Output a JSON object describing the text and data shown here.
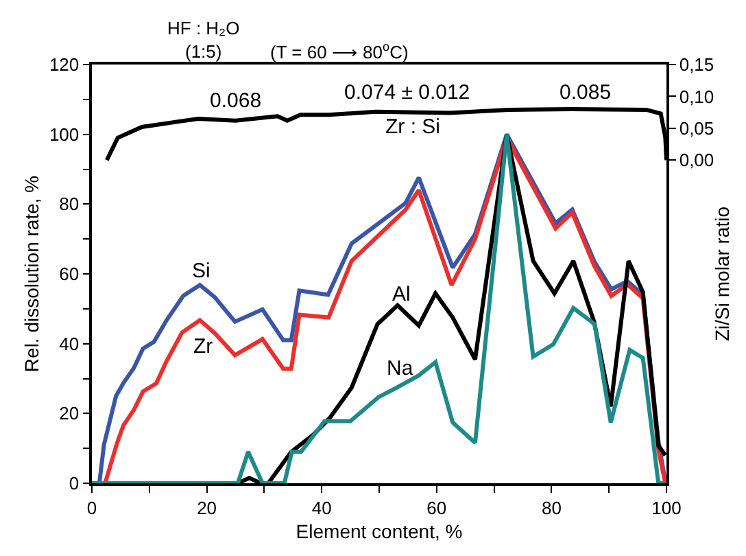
{
  "chart_data": {
    "type": "line",
    "xlabel": "Element content, %",
    "ylabel": "Rel. dissolution rate, %",
    "y2label": "Zi/Si molar ratio",
    "xlim": [
      0,
      100
    ],
    "xticks": [
      0,
      {
        "value": 10,
        "label": null
      },
      20,
      {
        "value": 30,
        "label": null
      },
      40,
      {
        "value": 50,
        "label": null
      },
      60,
      {
        "value": 70,
        "label": null
      },
      80,
      {
        "value": 90,
        "label": null
      },
      100
    ],
    "ylim": [
      0,
      120
    ],
    "yticks": [
      0,
      {
        "value": 10,
        "label": null
      },
      20,
      {
        "value": 30,
        "label": null
      },
      40,
      {
        "value": 50,
        "label": null
      },
      60,
      {
        "value": 70,
        "label": null
      },
      80,
      {
        "value": 90,
        "label": null
      },
      100,
      {
        "value": 110,
        "label": null
      },
      120
    ],
    "y2lim": [
      -0.507,
      0.15
    ],
    "y2ticks": [
      {
        "value": 0,
        "label": "0,00"
      },
      {
        "value": 0.05,
        "label": "0,05"
      },
      {
        "value": 0.1,
        "label": "0,10"
      },
      {
        "value": 0.15,
        "label": "0,15"
      }
    ],
    "marker": "none",
    "line_style": "solid",
    "series": [
      {
        "color": "#3a56a8",
        "x": [
          0.2,
          1.3,
          2.1,
          4.2,
          5.6,
          7.3,
          8.9,
          10.8,
          13,
          15.9,
          18.8,
          21.4,
          24.9,
          29.7,
          33.3,
          34.7,
          36.1,
          41.1,
          45.2,
          49.9,
          54.6,
          56.9,
          62.8,
          66.7,
          72.2,
          80.7,
          83.6,
          87.4,
          90.4,
          93.2,
          95.9,
          98.6,
          99.8
        ],
        "values": [
          0,
          0,
          11,
          25,
          29,
          33,
          38.6,
          40.5,
          46.7,
          53.7,
          56.8,
          53.3,
          46.3,
          49.8,
          41,
          41,
          55.2,
          54,
          68.7,
          74.5,
          80.3,
          87.6,
          61.8,
          71.4,
          100,
          74.5,
          78.4,
          63.7,
          55.6,
          57.9,
          54,
          12,
          0.4
        ]
      },
      {
        "color": "#e8312f",
        "x": [
          2.3,
          4.4,
          5.5,
          7.3,
          8.9,
          11.2,
          13,
          15.7,
          18.8,
          21.4,
          24.9,
          29.7,
          33.3,
          34.7,
          36.1,
          41.2,
          45.2,
          54.6,
          56.9,
          62.6,
          66.7,
          72.2,
          80.7,
          83.6,
          87.4,
          90.4,
          93.2,
          95.9,
          98.6,
          99.8
        ],
        "values": [
          0,
          11.6,
          16.6,
          21,
          26.3,
          28.6,
          35,
          43.2,
          46.7,
          43,
          36.7,
          41.3,
          32.8,
          32.8,
          48.3,
          47.5,
          63.7,
          78.4,
          84,
          56.8,
          70,
          99,
          73,
          77.6,
          62.4,
          53.7,
          57,
          53,
          9.6,
          0
        ]
      },
      {
        "color": "#000000",
        "x": [
          0,
          25.4,
          27.4,
          29.4,
          30.7,
          34.7,
          38.6,
          41.3,
          45.2,
          49.7,
          53.2,
          56.9,
          59.8,
          62.8,
          66.7,
          72.2,
          76.8,
          80.5,
          83.8,
          87.4,
          90.3,
          93.4,
          95.9,
          98.6,
          99.8
        ],
        "values": [
          0,
          0,
          1.5,
          0,
          0,
          9,
          14,
          18.5,
          27.4,
          45.6,
          51,
          45.2,
          54.4,
          47.5,
          35.5,
          100,
          63.7,
          54.4,
          63.7,
          46.3,
          22,
          63.7,
          54.8,
          10.8,
          8
        ]
      },
      {
        "color": "#1f8a8a",
        "x": [
          0,
          25.4,
          27.2,
          29.7,
          33.5,
          34.8,
          36.4,
          40.5,
          45,
          49.9,
          52.6,
          56.9,
          59.8,
          62.8,
          66.7,
          72.2,
          76.8,
          80.3,
          83.8,
          87.5,
          90.3,
          93.6,
          95.9,
          98.6,
          99.8
        ],
        "values": [
          0,
          0,
          9,
          0,
          0,
          9,
          9,
          17.8,
          17.8,
          24.7,
          27,
          30.9,
          34.7,
          17.4,
          11.6,
          100,
          36.3,
          39.8,
          50.2,
          45.6,
          17.4,
          38.2,
          35.9,
          0,
          0
        ]
      },
      {
        "color": "#000000",
        "axis": "y2",
        "x": [
          2.6,
          4.5,
          8.7,
          18.5,
          25,
          32.3,
          34,
          36.3,
          41.2,
          49.4,
          62.3,
          72.5,
          83.5,
          96.5,
          99,
          99.8,
          100
        ],
        "values": [
          0,
          0.035,
          0.052,
          0.065,
          0.062,
          0.069,
          0.062,
          0.071,
          0.071,
          0.076,
          0.074,
          0.079,
          0.08,
          0.079,
          0.073,
          0.036,
          0
        ]
      }
    ],
    "annotations": [
      "HF : H₂O\n(1:5)",
      "(T = 60 ⟶ 80$^{o}$C)",
      "0.068",
      "0.074 ± 0.012",
      "Zr : Si",
      "0.085",
      "Si",
      "Zr",
      "Al",
      "Na"
    ]
  }
}
